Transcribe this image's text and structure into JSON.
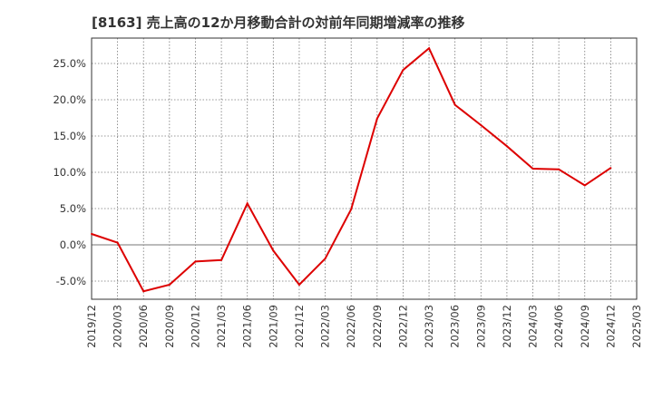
{
  "chart_data": {
    "type": "line",
    "title": "[8163]  売上高の12か月移動合計の対前年同期増減率の推移",
    "xlabel": "",
    "ylabel": "",
    "x_ticks": [
      "2019/12",
      "2020/03",
      "2020/06",
      "2020/09",
      "2020/12",
      "2021/03",
      "2021/06",
      "2021/09",
      "2021/12",
      "2022/03",
      "2022/06",
      "2022/09",
      "2022/12",
      "2023/03",
      "2023/06",
      "2023/09",
      "2023/12",
      "2024/03",
      "2024/06",
      "2024/09",
      "2024/12",
      "2025/03"
    ],
    "y_ticks": [
      -5,
      0,
      5,
      10,
      15,
      20,
      25
    ],
    "y_tick_labels": [
      "-5.0%",
      "0.0%",
      "5.0%",
      "10.0%",
      "15.0%",
      "20.0%",
      "25.0%"
    ],
    "ylim": [
      -7.5,
      28.5
    ],
    "grid": true,
    "series": [
      {
        "name": "増減率",
        "color": "#dd0000",
        "values": [
          1.5,
          0.3,
          -6.4,
          -5.5,
          -2.3,
          -2.1,
          5.7,
          -0.8,
          -5.5,
          -1.9,
          4.9,
          17.4,
          24.1,
          27.1,
          19.3,
          16.5,
          13.6,
          10.5,
          10.4,
          8.2,
          10.6
        ]
      }
    ]
  }
}
